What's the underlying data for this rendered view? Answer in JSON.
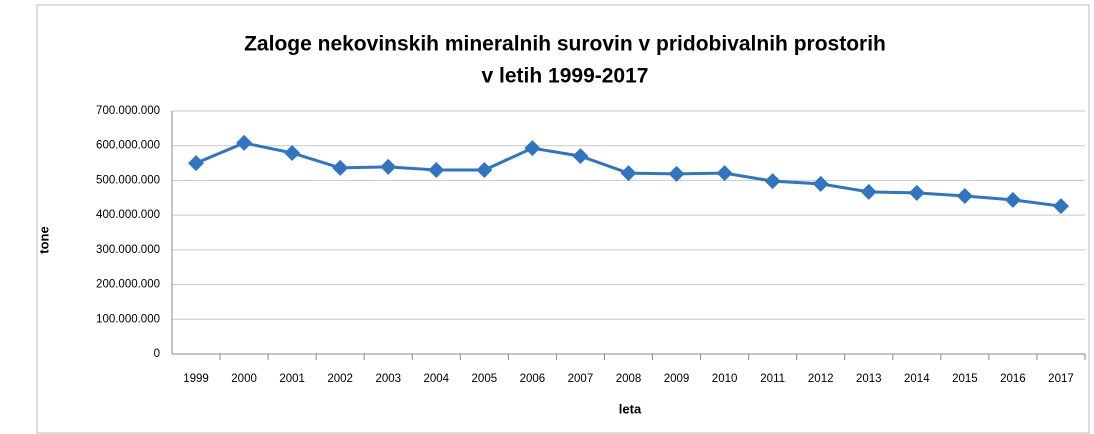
{
  "chart_data": {
    "type": "line",
    "title": [
      "Zaloge nekovinskih mineralnih surovin v pridobivalnih prostorih",
      "v letih 1999-2017"
    ],
    "x_label": "leta",
    "y_label": "tone",
    "categories": [
      "1999",
      "2000",
      "2001",
      "2002",
      "2003",
      "2004",
      "2005",
      "2006",
      "2007",
      "2008",
      "2009",
      "2010",
      "2011",
      "2012",
      "2013",
      "2014",
      "2015",
      "2016",
      "2017"
    ],
    "series": [
      {
        "name": "tone",
        "color": "#2f75c0",
        "values": [
          550000000,
          608000000,
          579000000,
          536000000,
          539000000,
          530000000,
          530000000,
          593000000,
          570000000,
          521000000,
          519000000,
          521000000,
          498000000,
          490000000,
          467000000,
          464000000,
          455000000,
          444000000,
          426000000
        ]
      }
    ],
    "ylim": [
      0,
      700000000
    ],
    "yticks": [
      0,
      {
        "value": 100000000,
        "label": "100.000.000"
      },
      {
        "value": 200000000,
        "label": "200.000.000"
      },
      {
        "value": 300000000,
        "label": "300.000.000"
      },
      {
        "value": 400000000,
        "label": "400.000.000"
      },
      {
        "value": 500000000,
        "label": "500.000.000"
      },
      {
        "value": 600000000,
        "label": "600.000.000"
      },
      {
        "value": 700000000,
        "label": "700.000.000"
      }
    ],
    "grid": true,
    "legend": false
  }
}
